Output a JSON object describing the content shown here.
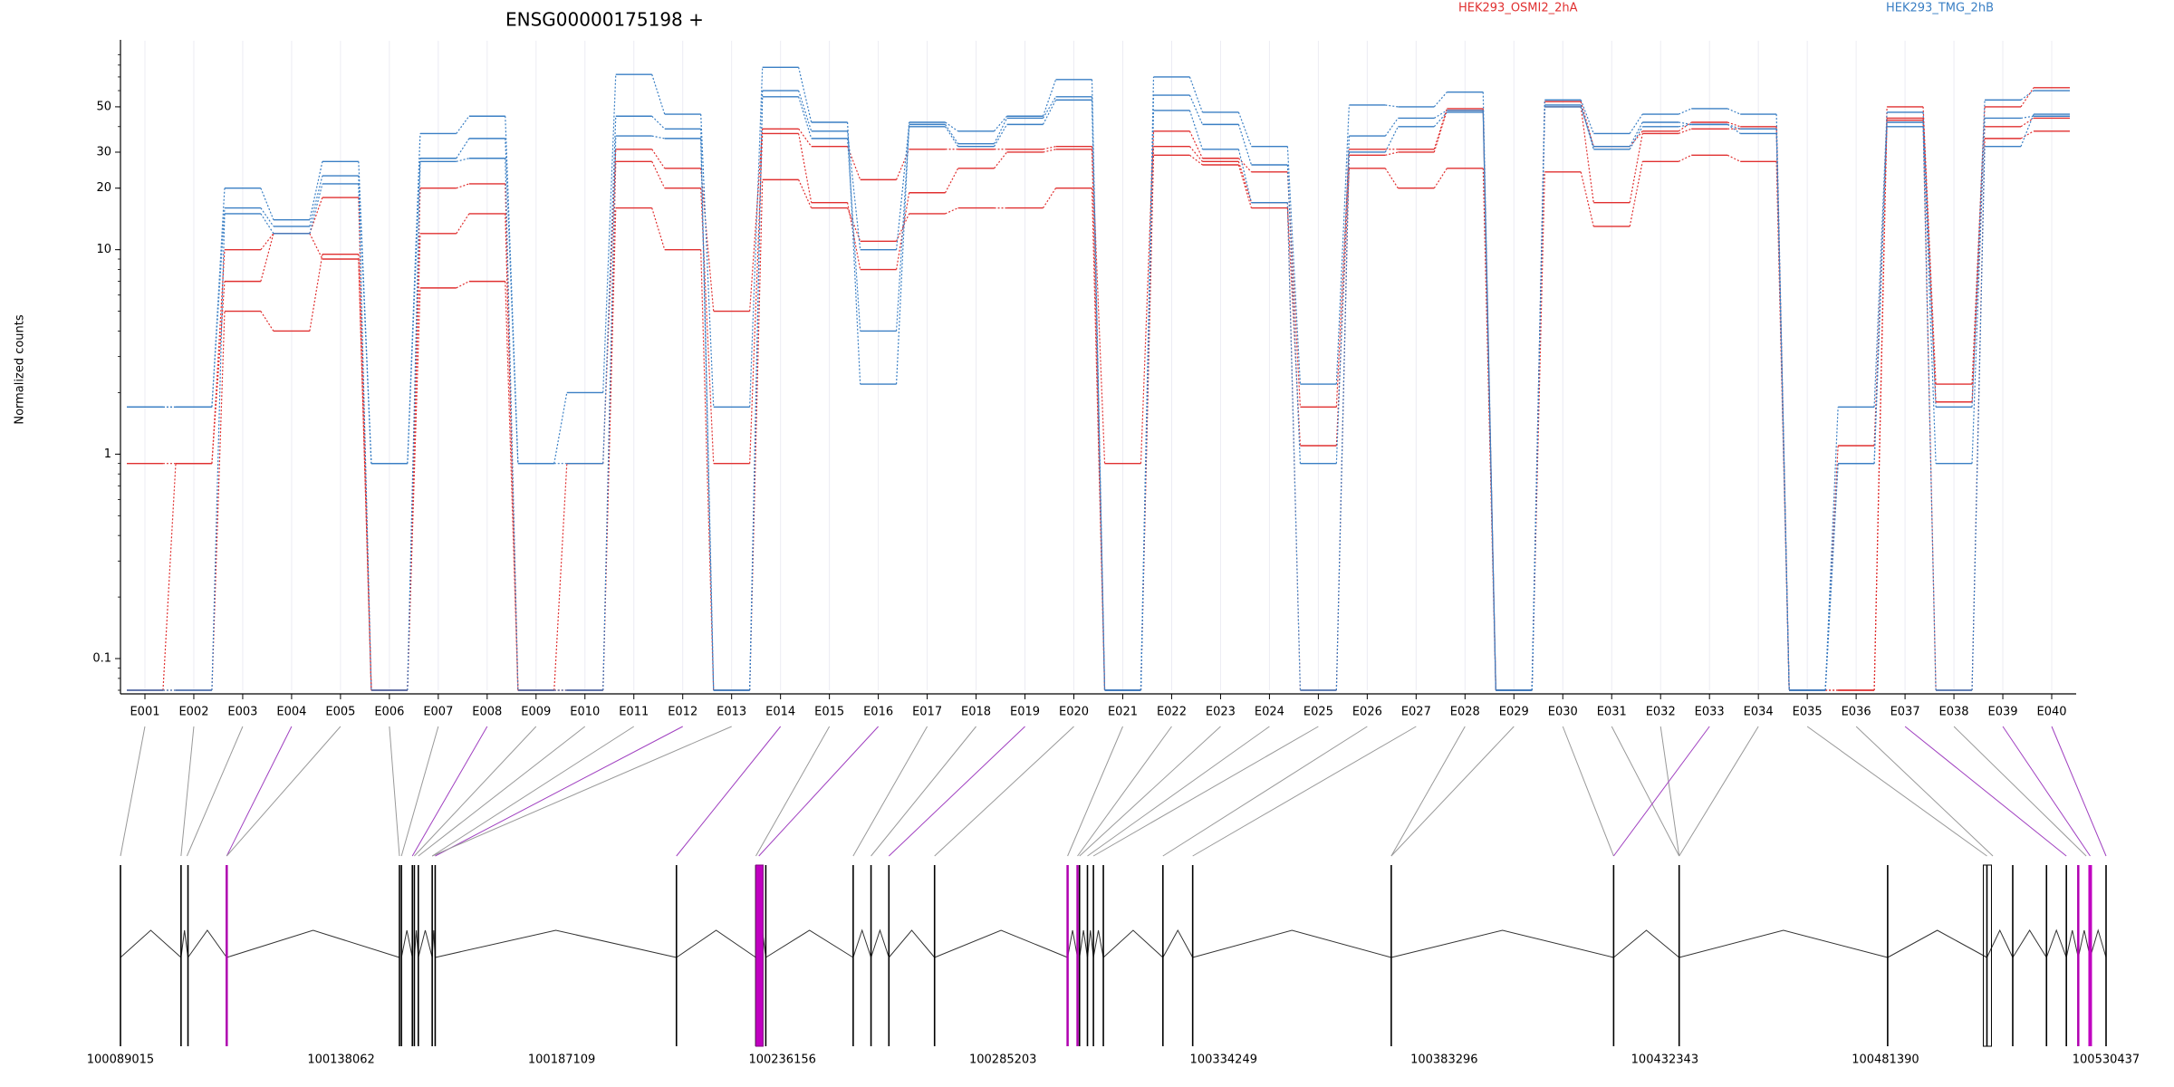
{
  "chart_data": {
    "type": "line",
    "title": "ENSG00000175198 +",
    "ylabel": "Normalized counts",
    "y_scale": "log",
    "ylim": [
      0.07,
      95
    ],
    "y_ticks": [
      0.1,
      1,
      10,
      20,
      30,
      50
    ],
    "y_tick_labels": [
      "0.1",
      "1",
      "10",
      "20",
      "30",
      "50"
    ],
    "grid": "vertical",
    "legend": [
      {
        "label": "HEK293_OSMI2_2hA",
        "color": "#e03030"
      },
      {
        "label": "HEK293_TMG_2hB",
        "color": "#3a7fc4"
      }
    ],
    "categories": [
      "E001",
      "E002",
      "E003",
      "E004",
      "E005",
      "E006",
      "E007",
      "E008",
      "E009",
      "E010",
      "E011",
      "E012",
      "E013",
      "E014",
      "E015",
      "E016",
      "E017",
      "E018",
      "E019",
      "E020",
      "E021",
      "E022",
      "E023",
      "E024",
      "E025",
      "E026",
      "E027",
      "E028",
      "E029",
      "E030",
      "E031",
      "E032",
      "E033",
      "E034",
      "E035",
      "E036",
      "E037",
      "E038",
      "E039",
      "E040"
    ],
    "series": [
      {
        "group": "HEK293_OSMI2_2hA",
        "color": "#e03030",
        "values": [
          0.9,
          0.9,
          10,
          12,
          18,
          0.07,
          20,
          21,
          0.07,
          0.9,
          31,
          25,
          5,
          39,
          32,
          22,
          31,
          31,
          31,
          32,
          0.9,
          38,
          28,
          24,
          1.7,
          31,
          31,
          49,
          0.07,
          53,
          32,
          38,
          42,
          40,
          0.07,
          0.07,
          50,
          2.2,
          50,
          62
        ]
      },
      {
        "group": "HEK293_OSMI2_2hA",
        "color": "#e03030",
        "values": [
          0.07,
          0.9,
          7,
          12,
          9,
          0.07,
          12,
          15,
          0.07,
          0.07,
          27,
          20,
          0.9,
          37,
          17,
          8,
          19,
          25,
          30,
          31,
          0.07,
          32,
          27,
          17,
          0.07,
          29,
          30,
          48,
          0.07,
          50,
          17,
          37,
          39,
          39,
          0.07,
          1.1,
          44,
          1.8,
          40,
          44
        ]
      },
      {
        "group": "HEK293_OSMI2_2hA",
        "color": "#e03030",
        "values": [
          0.07,
          0.07,
          5,
          4,
          9.5,
          0.07,
          6.5,
          7,
          0.07,
          0.07,
          16,
          10,
          0.07,
          22,
          16,
          11,
          15,
          16,
          16,
          20,
          0.07,
          29,
          26,
          16,
          1.1,
          25,
          20,
          25,
          0.07,
          24,
          13,
          27,
          29,
          27,
          0.07,
          0.07,
          43,
          0.07,
          35,
          38
        ]
      },
      {
        "group": "HEK293_TMG_2hB",
        "color": "#3a7fc4",
        "values": [
          1.7,
          1.7,
          20,
          14,
          27,
          0.9,
          37,
          45,
          0.9,
          2,
          72,
          46,
          1.7,
          78,
          42,
          2.2,
          42,
          38,
          45,
          68,
          0.07,
          70,
          47,
          32,
          2.2,
          51,
          50,
          59,
          0.07,
          54,
          37,
          46,
          49,
          46,
          0.07,
          1.7,
          47,
          1.7,
          54,
          60
        ]
      },
      {
        "group": "HEK293_TMG_2hB",
        "color": "#3a7fc4",
        "values": [
          1.7,
          1.7,
          16,
          13,
          23,
          0.9,
          28,
          35,
          0.9,
          0.9,
          45,
          39,
          0.07,
          60,
          38,
          10,
          41,
          33,
          44,
          56,
          0.07,
          57,
          41,
          26,
          0.9,
          36,
          44,
          48,
          0.07,
          50,
          32,
          42,
          41,
          37,
          0.07,
          0.9,
          42,
          0.9,
          44,
          45
        ]
      },
      {
        "group": "HEK293_TMG_2hB",
        "color": "#3a7fc4",
        "values": [
          0.07,
          0.07,
          15,
          12,
          21,
          0.07,
          27,
          28,
          0.07,
          0.07,
          36,
          35,
          0.07,
          56,
          35,
          4,
          40,
          32,
          41,
          54,
          0.07,
          48,
          31,
          17,
          0.07,
          30,
          40,
          47,
          0.07,
          51,
          31,
          40,
          41,
          39,
          0.07,
          0.9,
          40,
          0.07,
          32,
          46
        ]
      }
    ],
    "genomic_axis": {
      "tick_labels": [
        "100089015",
        "100138062",
        "100187109",
        "100236156",
        "100285203",
        "100334249",
        "100383296",
        "100432343",
        "100481390",
        "100530437"
      ]
    }
  }
}
